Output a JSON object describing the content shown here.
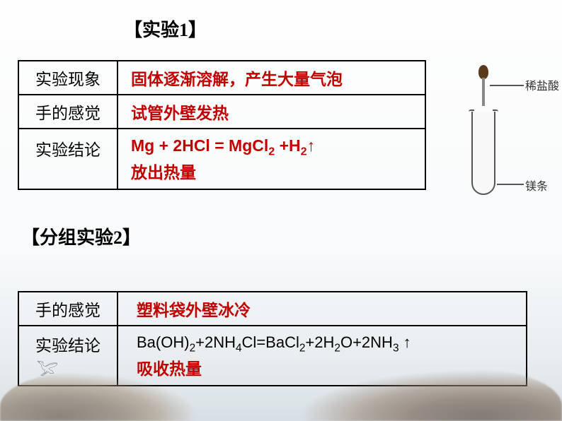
{
  "experiment1": {
    "title": "【实验1】",
    "rows": {
      "phenomenon": {
        "label": "实验现象",
        "value": "固体逐渐溶解，产生大量气泡"
      },
      "feeling": {
        "label": "手的感觉",
        "value": "试管外壁发热"
      },
      "conclusion": {
        "label": "实验结论",
        "equation_html": "Mg + 2HCl = MgCl<sub>2</sub> +H<sub>2</sub>↑",
        "note": "放出热量"
      }
    },
    "diagram": {
      "label_top": "稀盐酸",
      "label_bottom": "镁条"
    }
  },
  "experiment2": {
    "title": "【分组实验2】",
    "rows": {
      "feeling": {
        "label": "手的感觉",
        "value": "塑料袋外壁冰冷"
      },
      "conclusion": {
        "label": "实验结论",
        "equation_html": "Ba(OH)<sub>2</sub>+2NH<sub>4</sub>Cl=BaCl<sub>2</sub>+2H<sub>2</sub>O+2NH<sub>3</sub> ↑",
        "note": "吸收热量"
      }
    }
  },
  "colors": {
    "highlight": "#c00000",
    "text": "#000000",
    "border": "#000000"
  }
}
